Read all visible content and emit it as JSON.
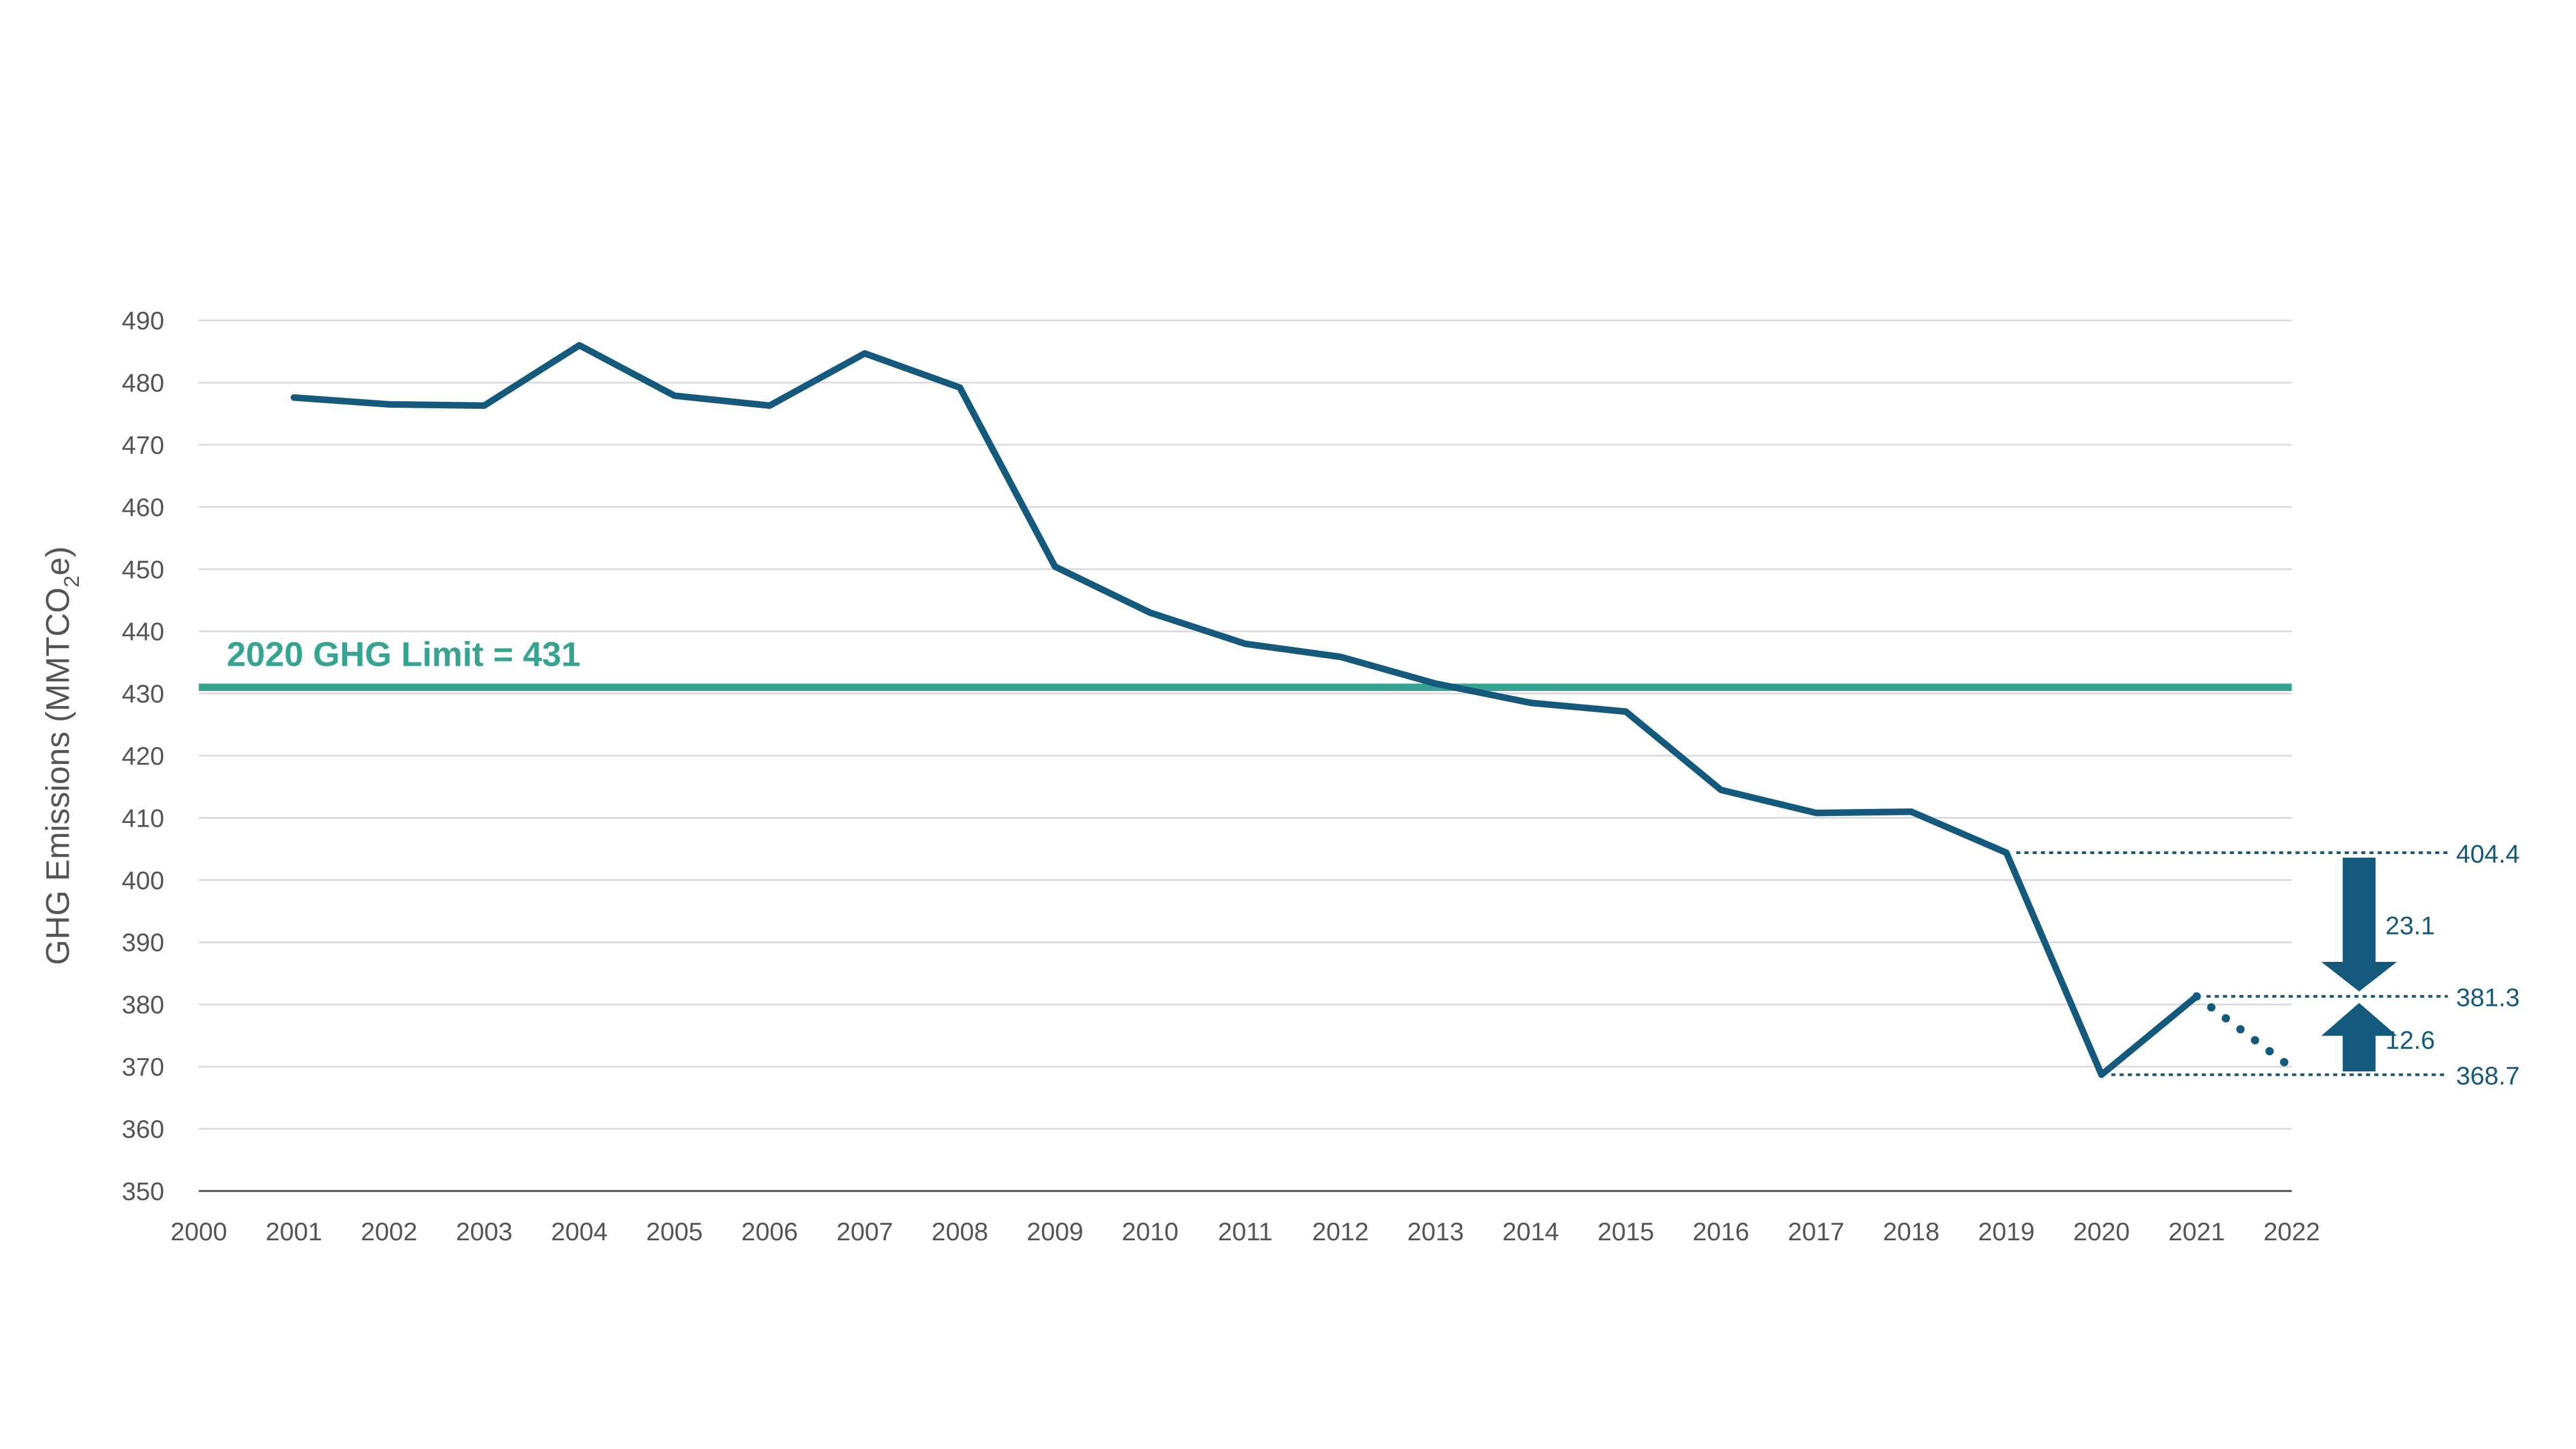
{
  "chart_data": {
    "type": "line",
    "title": "",
    "xlabel": "",
    "ylabel": "GHG Emissions (MMTCO",
    "ylabel_sub": "2",
    "ylabel_end": "e)",
    "xlim": [
      2000,
      2022
    ],
    "ylim": [
      350,
      490
    ],
    "grid": true,
    "x_ticks": [
      "2000",
      "2001",
      "2002",
      "2003",
      "2004",
      "2005",
      "2006",
      "2007",
      "2008",
      "2009",
      "2010",
      "2011",
      "2012",
      "2013",
      "2014",
      "2015",
      "2016",
      "2017",
      "2018",
      "2019",
      "2020",
      "2021",
      "2022"
    ],
    "y_ticks": [
      "350",
      "360",
      "370",
      "380",
      "390",
      "400",
      "410",
      "420",
      "430",
      "440",
      "450",
      "460",
      "470",
      "480",
      "490"
    ],
    "series": [
      {
        "x": [
          2001,
          2002,
          2003,
          2004,
          2005,
          2006,
          2007,
          2008,
          2009,
          2010,
          2011,
          2012,
          2013,
          2014,
          2015,
          2016,
          2017,
          2018,
          2019,
          2020,
          2021
        ],
        "values": [
          477.6,
          476.5,
          476.3,
          486.0,
          477.9,
          476.3,
          484.7,
          479.2,
          450.4,
          443.0,
          438.0,
          435.9,
          431.6,
          428.5,
          427.1,
          414.5,
          410.8,
          411.0,
          404.4,
          368.7,
          381.3
        ],
        "color": "#135a7c",
        "style": "solid"
      },
      {
        "x": [
          2021,
          2022
        ],
        "values": [
          381.3,
          369.8
        ],
        "color": "#135a7c",
        "style": "dotted"
      }
    ],
    "reference_line": {
      "value": 431,
      "label": "2020 GHG Limit = 431",
      "color": "#35a591"
    },
    "annotations": {
      "levels": [
        {
          "value": 404.4,
          "label": "404.4",
          "from_year": 2019
        },
        {
          "value": 381.3,
          "label": "381.3",
          "from_year": 2021
        },
        {
          "value": 368.7,
          "label": "368.7",
          "from_year": 2020
        }
      ],
      "arrows": [
        {
          "from": 404.4,
          "to": 381.3,
          "label": "23.1",
          "direction": "down"
        },
        {
          "from": 368.7,
          "to": 381.3,
          "label": "12.6",
          "direction": "up"
        }
      ],
      "color": "#135a7c"
    }
  }
}
